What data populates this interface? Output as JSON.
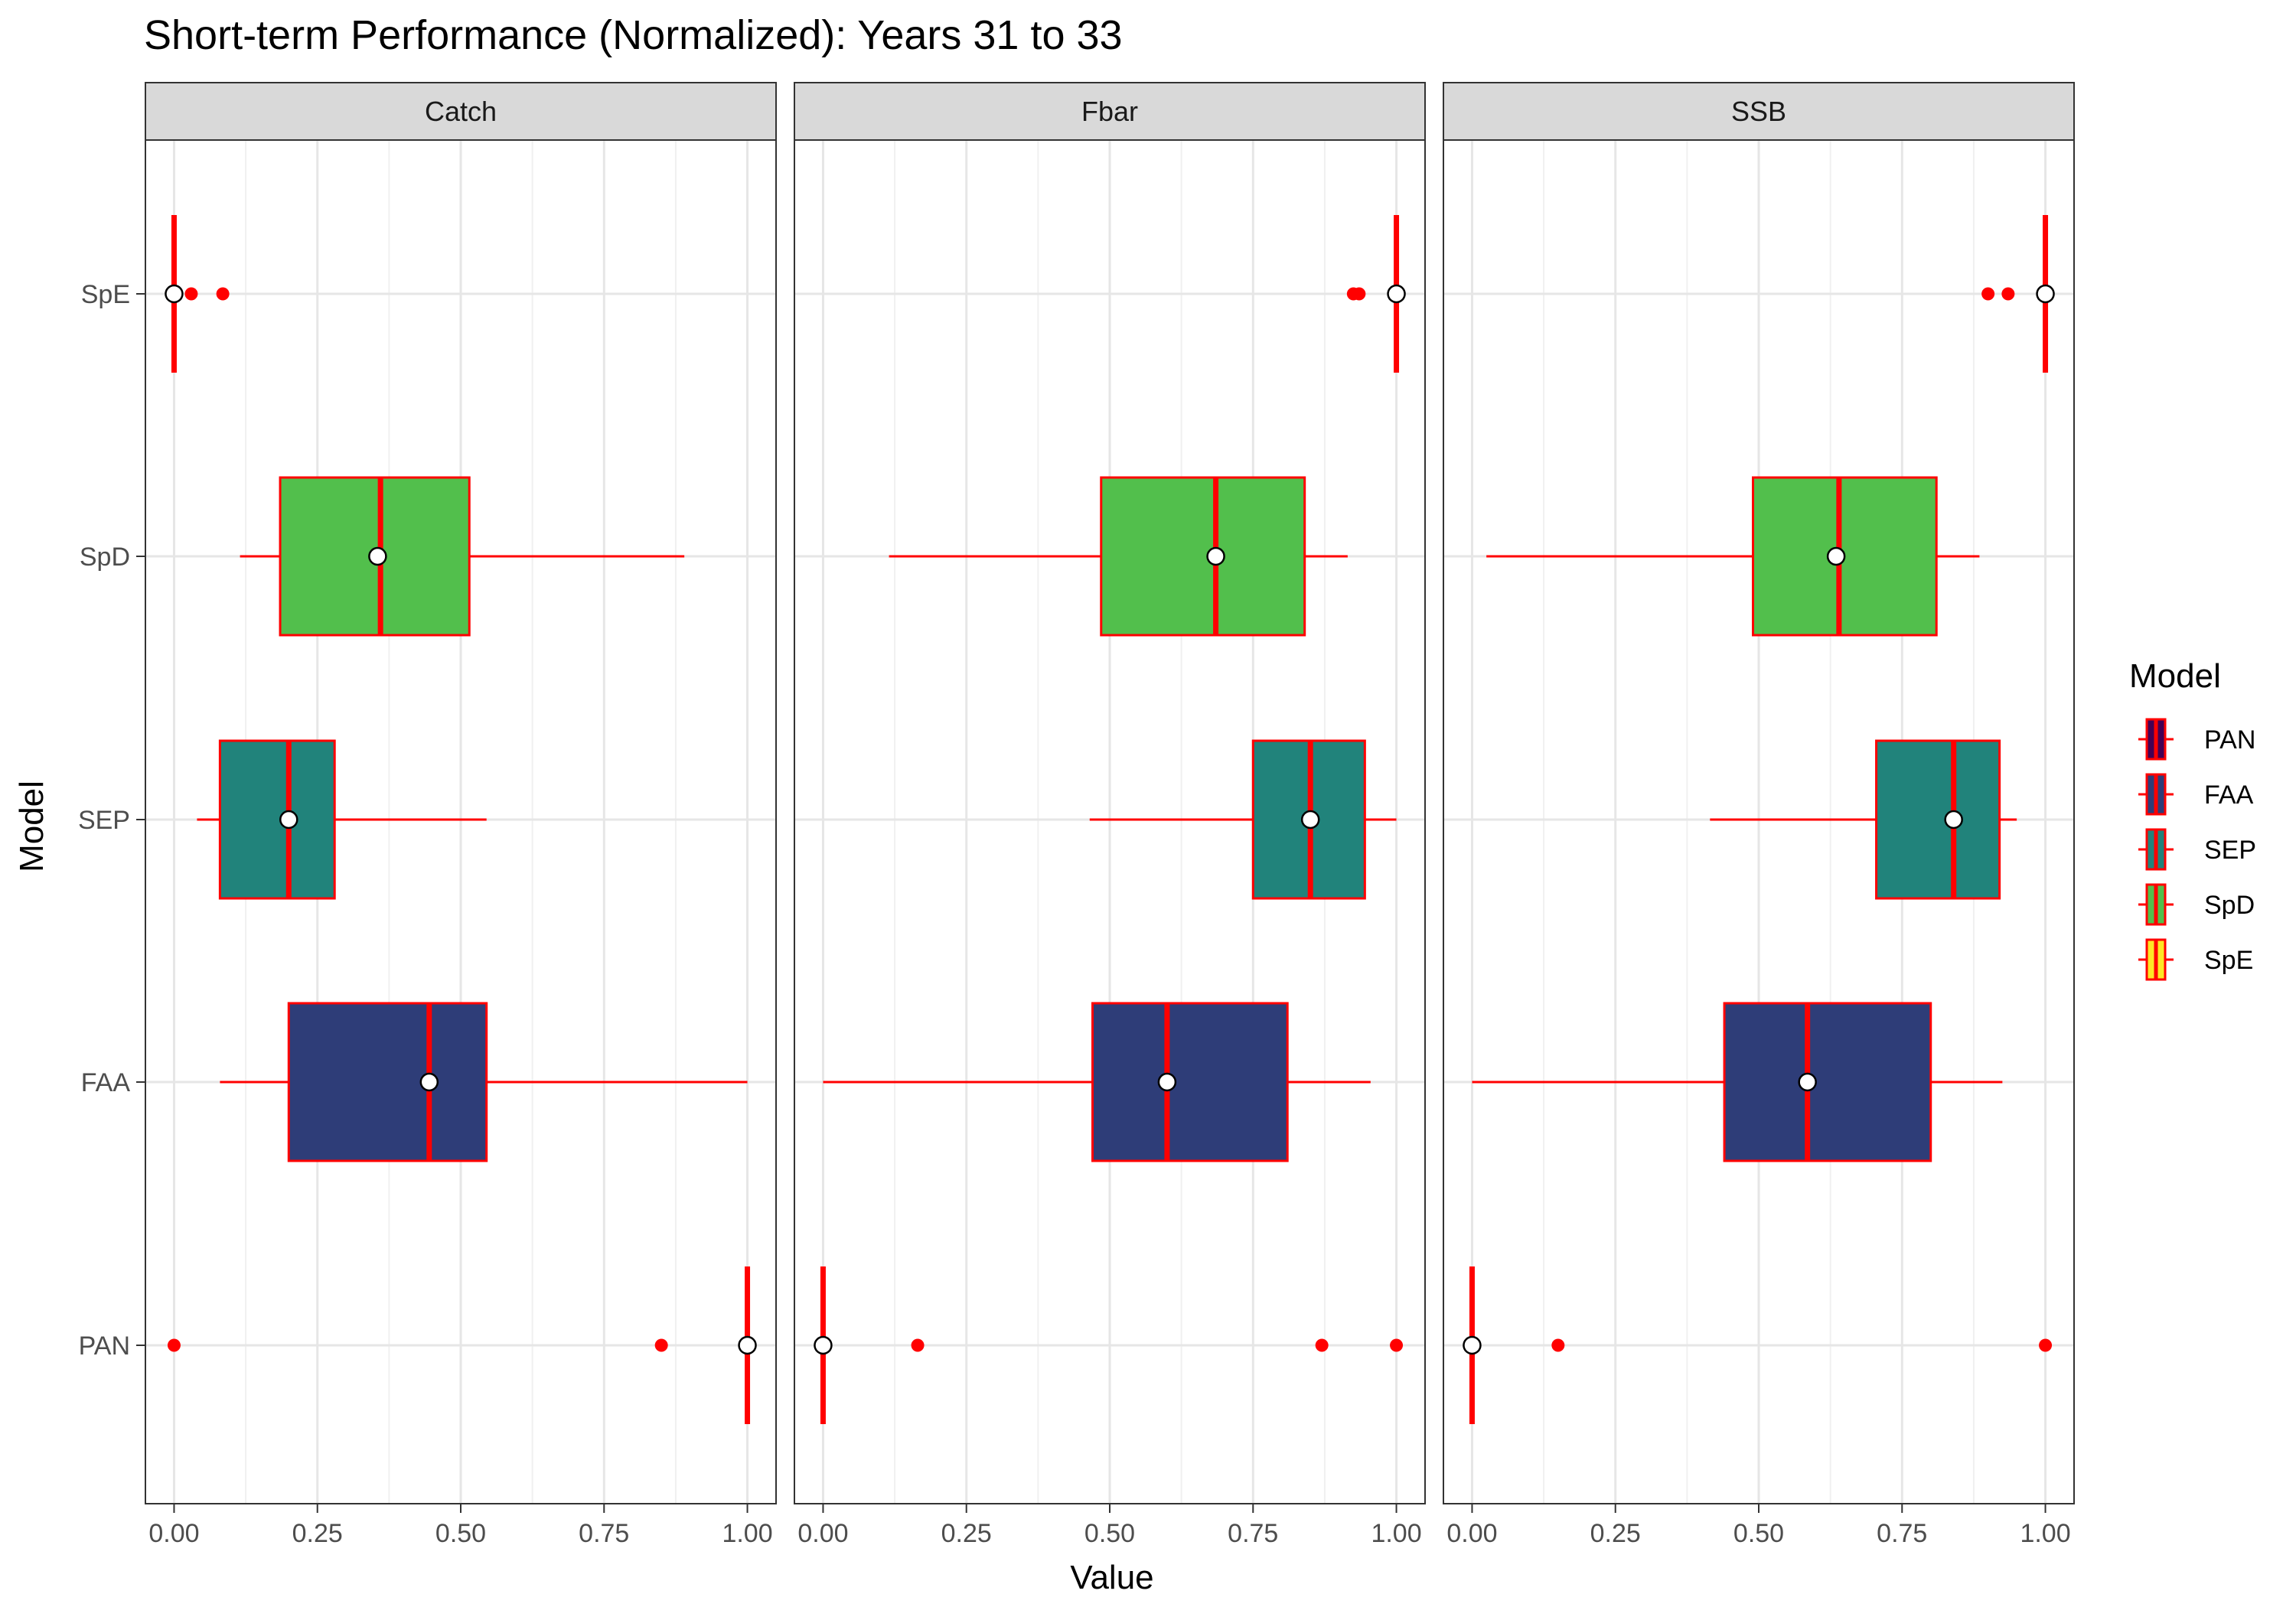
{
  "chart_data": {
    "type": "boxplot",
    "title": "Short-term Performance (Normalized): Years 31 to 33",
    "xlabel": "Value",
    "ylabel": "Model",
    "xlim": [
      -0.05,
      1.05
    ],
    "x_ticks": [
      0,
      0.25,
      0.5,
      0.75,
      1
    ],
    "x_tick_labels": [
      "0.00",
      "0.25",
      "0.50",
      "0.75",
      "1.00"
    ],
    "categories": [
      "PAN",
      "FAA",
      "SEP",
      "SpD",
      "SpE"
    ],
    "grid": true,
    "legend": {
      "title": "Model",
      "position": "right",
      "items": [
        {
          "label": "PAN",
          "color": "#440154"
        },
        {
          "label": "FAA",
          "color": "#2E3D78"
        },
        {
          "label": "SEP",
          "color": "#21837B"
        },
        {
          "label": "SpD",
          "color": "#52BF4C"
        },
        {
          "label": "SpE",
          "color": "#FDE725"
        }
      ]
    },
    "outline_color": "#FF0000",
    "mean_marker_color": "#FFFFFF",
    "panels": [
      {
        "name": "Catch",
        "boxes": [
          {
            "model": "PAN",
            "q1": 1.0,
            "median": 1.0,
            "q3": 1.0,
            "whisker_low": 1.0,
            "whisker_high": 1.0,
            "mean": 1.0,
            "outliers": [
              0.0,
              0.85
            ]
          },
          {
            "model": "FAA",
            "q1": 0.2,
            "median": 0.445,
            "q3": 0.545,
            "whisker_low": 0.08,
            "whisker_high": 1.0,
            "mean": 0.445,
            "outliers": []
          },
          {
            "model": "SEP",
            "q1": 0.08,
            "median": 0.2,
            "q3": 0.28,
            "whisker_low": 0.04,
            "whisker_high": 0.545,
            "mean": 0.2,
            "outliers": []
          },
          {
            "model": "SpD",
            "q1": 0.185,
            "median": 0.36,
            "q3": 0.515,
            "whisker_low": 0.115,
            "whisker_high": 0.89,
            "mean": 0.355,
            "outliers": []
          },
          {
            "model": "SpE",
            "q1": 0.0,
            "median": 0.0,
            "q3": 0.0,
            "whisker_low": 0.0,
            "whisker_high": 0.0,
            "mean": 0.0,
            "outliers": [
              0.03,
              0.085
            ]
          }
        ]
      },
      {
        "name": "Fbar",
        "boxes": [
          {
            "model": "PAN",
            "q1": 0.0,
            "median": 0.0,
            "q3": 0.0,
            "whisker_low": 0.0,
            "whisker_high": 0.0,
            "mean": 0.0,
            "outliers": [
              0.165,
              0.87,
              1.0
            ]
          },
          {
            "model": "FAA",
            "q1": 0.47,
            "median": 0.6,
            "q3": 0.81,
            "whisker_low": 0.0,
            "whisker_high": 0.955,
            "mean": 0.6,
            "outliers": []
          },
          {
            "model": "SEP",
            "q1": 0.75,
            "median": 0.85,
            "q3": 0.945,
            "whisker_low": 0.465,
            "whisker_high": 1.0,
            "mean": 0.85,
            "outliers": []
          },
          {
            "model": "SpD",
            "q1": 0.485,
            "median": 0.685,
            "q3": 0.84,
            "whisker_low": 0.115,
            "whisker_high": 0.915,
            "mean": 0.685,
            "outliers": []
          },
          {
            "model": "SpE",
            "q1": 1.0,
            "median": 1.0,
            "q3": 1.0,
            "whisker_low": 1.0,
            "whisker_high": 1.0,
            "mean": 1.0,
            "outliers": [
              0.925,
              0.935
            ]
          }
        ]
      },
      {
        "name": "SSB",
        "boxes": [
          {
            "model": "PAN",
            "q1": 0.0,
            "median": 0.0,
            "q3": 0.0,
            "whisker_low": 0.0,
            "whisker_high": 0.0,
            "mean": 0.0,
            "outliers": [
              0.15,
              1.0
            ]
          },
          {
            "model": "FAA",
            "q1": 0.44,
            "median": 0.585,
            "q3": 0.8,
            "whisker_low": 0.0,
            "whisker_high": 0.925,
            "mean": 0.585,
            "outliers": []
          },
          {
            "model": "SEP",
            "q1": 0.705,
            "median": 0.84,
            "q3": 0.92,
            "whisker_low": 0.415,
            "whisker_high": 0.95,
            "mean": 0.84,
            "outliers": []
          },
          {
            "model": "SpD",
            "q1": 0.49,
            "median": 0.64,
            "q3": 0.81,
            "whisker_low": 0.025,
            "whisker_high": 0.885,
            "mean": 0.635,
            "outliers": []
          },
          {
            "model": "SpE",
            "q1": 1.0,
            "median": 1.0,
            "q3": 1.0,
            "whisker_low": 1.0,
            "whisker_high": 1.0,
            "mean": 1.0,
            "outliers": [
              0.9,
              0.935
            ]
          }
        ]
      }
    ]
  }
}
